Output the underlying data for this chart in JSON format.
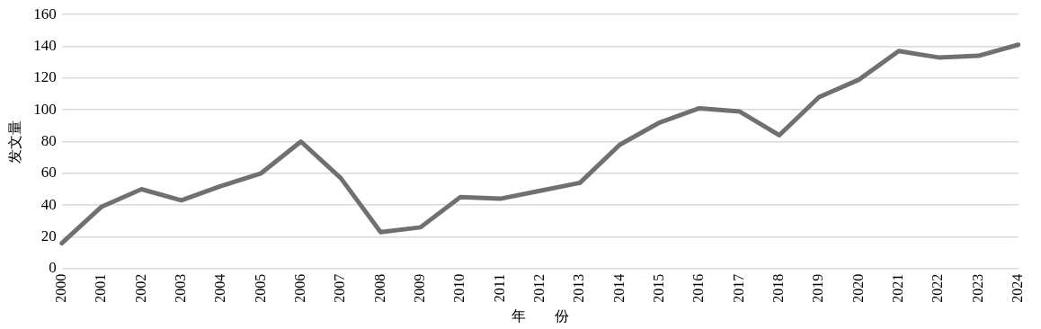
{
  "chart_data": {
    "type": "line",
    "xlabel": "年　　份",
    "ylabel": "发文量",
    "categories": [
      "2000",
      "2001",
      "2002",
      "2003",
      "2004",
      "2005",
      "2006",
      "2007",
      "2008",
      "2009",
      "2010",
      "2011",
      "2012",
      "2013",
      "2014",
      "2015",
      "2016",
      "2017",
      "2018",
      "2019",
      "2020",
      "2021",
      "2022",
      "2023",
      "2024"
    ],
    "series": [
      {
        "color": "#707070",
        "values": [
          16,
          39,
          50,
          43,
          52,
          60,
          80,
          57,
          23,
          26,
          45,
          44,
          49,
          54,
          78,
          92,
          101,
          99,
          84,
          108,
          119,
          137,
          133,
          134,
          141
        ]
      }
    ],
    "ylim": [
      0,
      160
    ],
    "yticks": [
      0,
      20,
      40,
      60,
      80,
      100,
      120,
      140,
      160
    ],
    "grid": "y",
    "legend": false,
    "marker": "none",
    "line_style": "solid"
  }
}
